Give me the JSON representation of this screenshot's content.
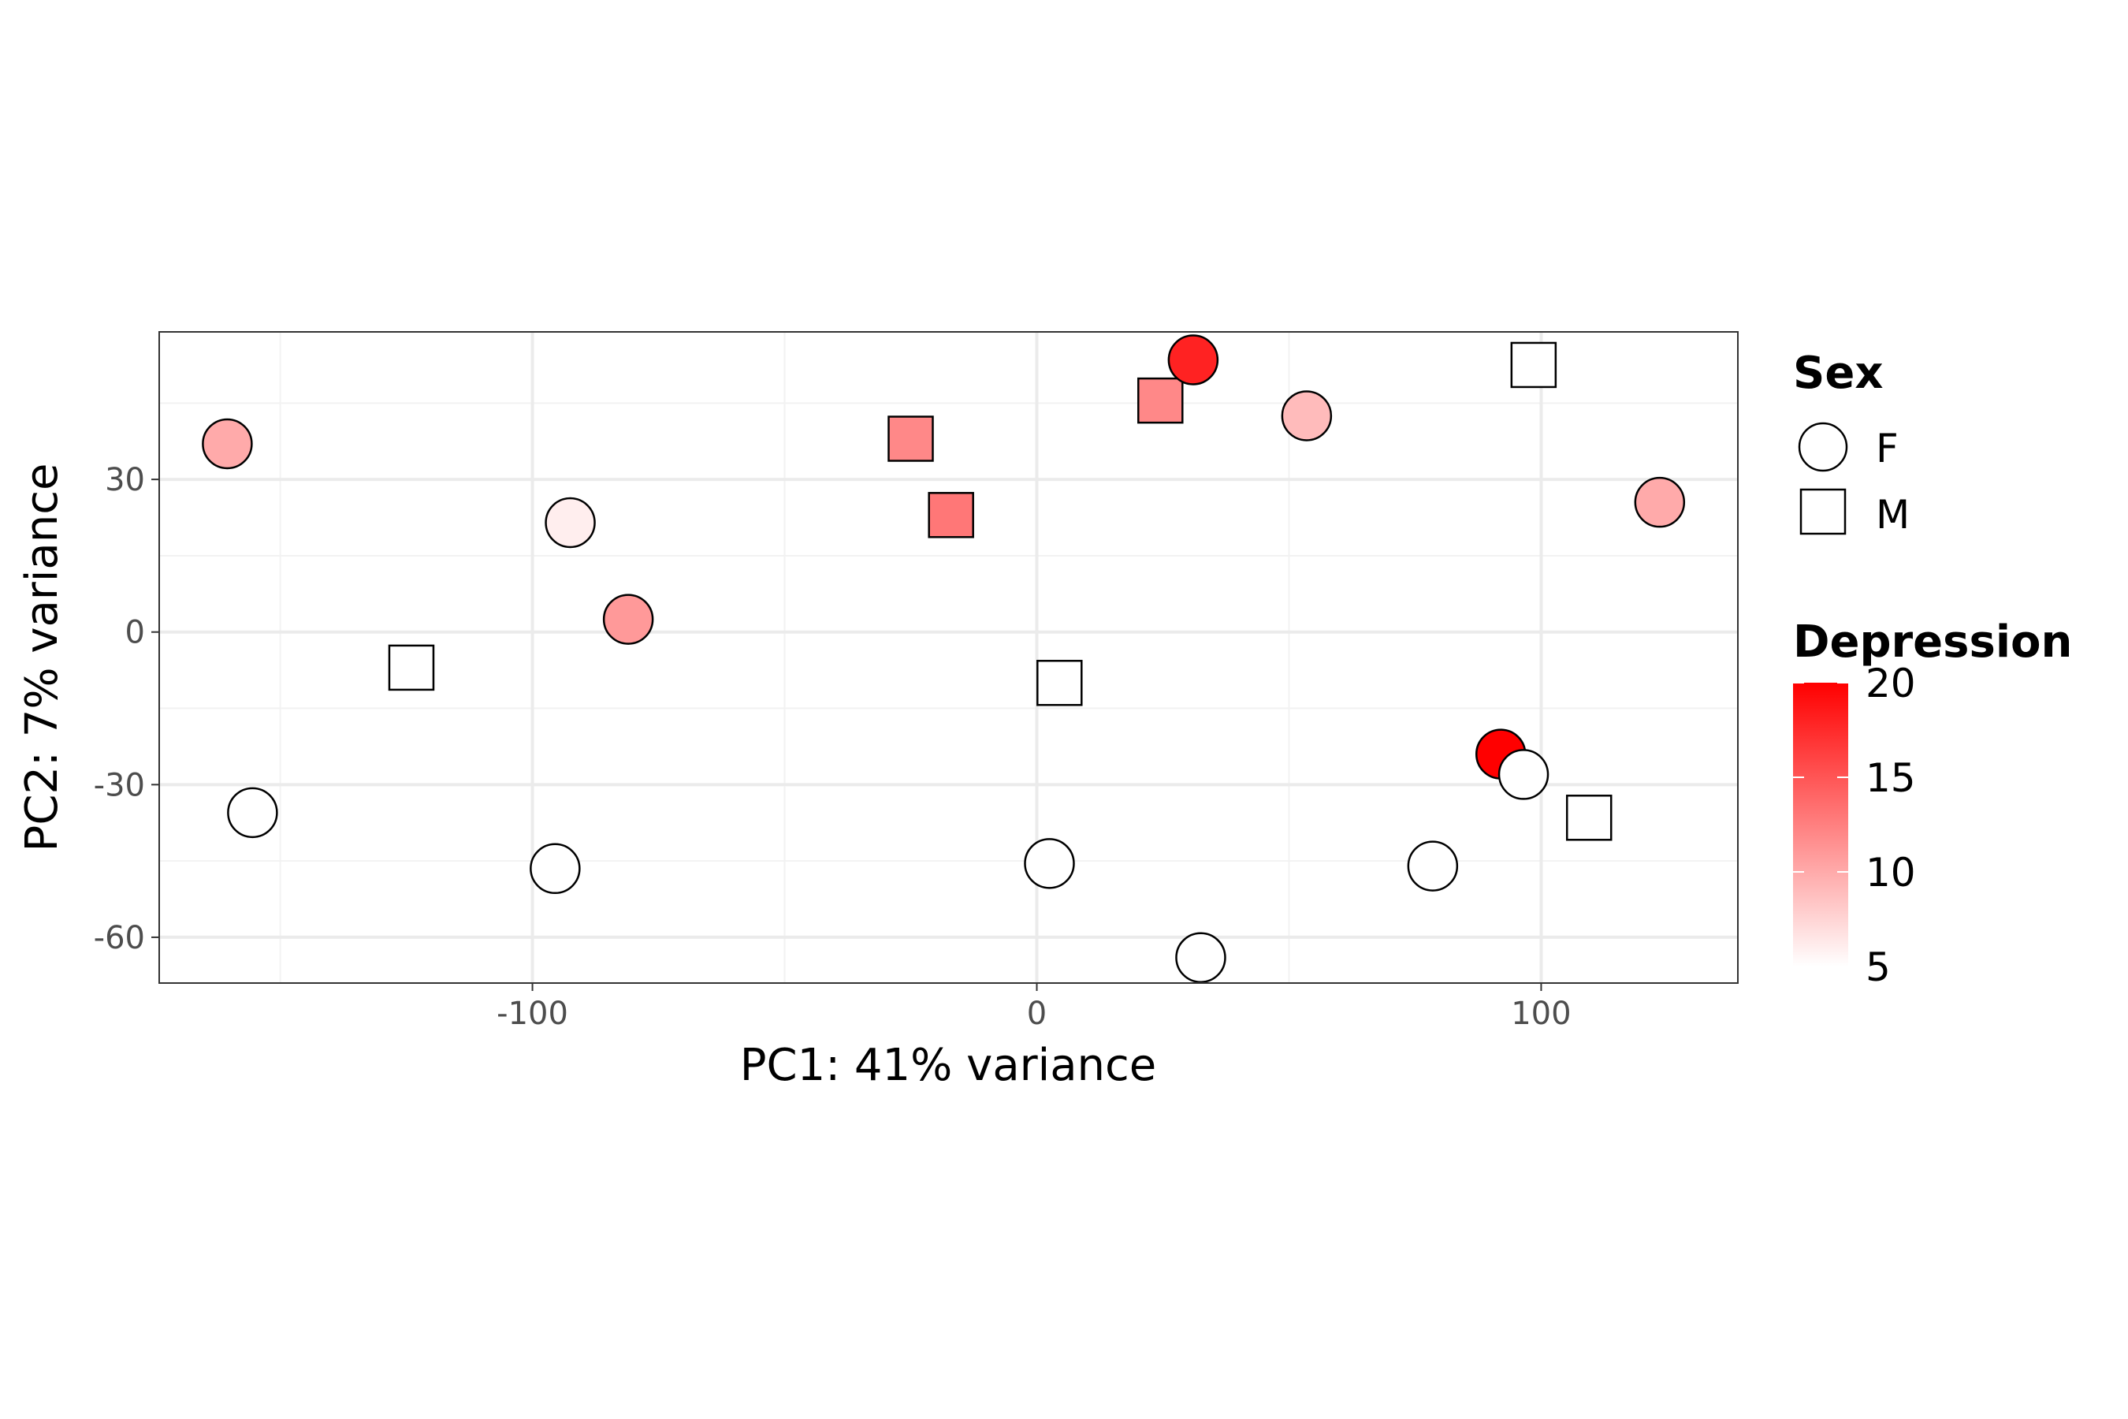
{
  "chart_data": {
    "type": "scatter",
    "title": "",
    "xlabel": "PC1: 41% variance",
    "ylabel": "PC2: 7% variance",
    "xlim": [
      -174,
      139
    ],
    "ylim": [
      -69,
      59
    ],
    "x_ticks": [
      -100,
      0,
      100
    ],
    "y_ticks": [
      -60,
      -30,
      0,
      30
    ],
    "grid": true,
    "legend_placement": "right",
    "shape_legend": {
      "title": "Sex",
      "entries": [
        {
          "label": "F",
          "shape": "circle"
        },
        {
          "label": "M",
          "shape": "square"
        }
      ]
    },
    "color_legend": {
      "title": "Depression",
      "min": 5,
      "max": 20,
      "ticks": [
        5,
        10,
        15,
        20
      ],
      "low_color": "#ffffff",
      "high_color": "#ff0000"
    },
    "points": [
      {
        "x": -160.5,
        "y": 37.0,
        "sex": "F",
        "depression": 10
      },
      {
        "x": -155.5,
        "y": -35.5,
        "sex": "F",
        "depression": 5
      },
      {
        "x": -124.0,
        "y": -7.0,
        "sex": "M",
        "depression": 5
      },
      {
        "x": -95.5,
        "y": -46.5,
        "sex": "F",
        "depression": 5
      },
      {
        "x": -92.5,
        "y": 21.5,
        "sex": "F",
        "depression": 6
      },
      {
        "x": -81.0,
        "y": 2.5,
        "sex": "F",
        "depression": 11
      },
      {
        "x": -25.0,
        "y": 38.0,
        "sex": "M",
        "depression": 12
      },
      {
        "x": -17.0,
        "y": 23.0,
        "sex": "M",
        "depression": 13
      },
      {
        "x": 2.5,
        "y": -45.5,
        "sex": "F",
        "depression": 5
      },
      {
        "x": 4.5,
        "y": -10.0,
        "sex": "M",
        "depression": 5
      },
      {
        "x": 24.5,
        "y": 45.5,
        "sex": "M",
        "depression": 12
      },
      {
        "x": 31.0,
        "y": 53.5,
        "sex": "F",
        "depression": 18
      },
      {
        "x": 32.5,
        "y": -64.0,
        "sex": "F",
        "depression": 5
      },
      {
        "x": 53.5,
        "y": 42.5,
        "sex": "F",
        "depression": 9
      },
      {
        "x": 78.5,
        "y": -46.0,
        "sex": "F",
        "depression": 5
      },
      {
        "x": 92.0,
        "y": -24.0,
        "sex": "F",
        "depression": 20
      },
      {
        "x": 96.5,
        "y": -28.0,
        "sex": "F",
        "depression": 5
      },
      {
        "x": 98.5,
        "y": 52.5,
        "sex": "M",
        "depression": 5
      },
      {
        "x": 109.5,
        "y": -36.5,
        "sex": "M",
        "depression": 5
      },
      {
        "x": 123.5,
        "y": 25.5,
        "sex": "F",
        "depression": 10
      }
    ]
  }
}
